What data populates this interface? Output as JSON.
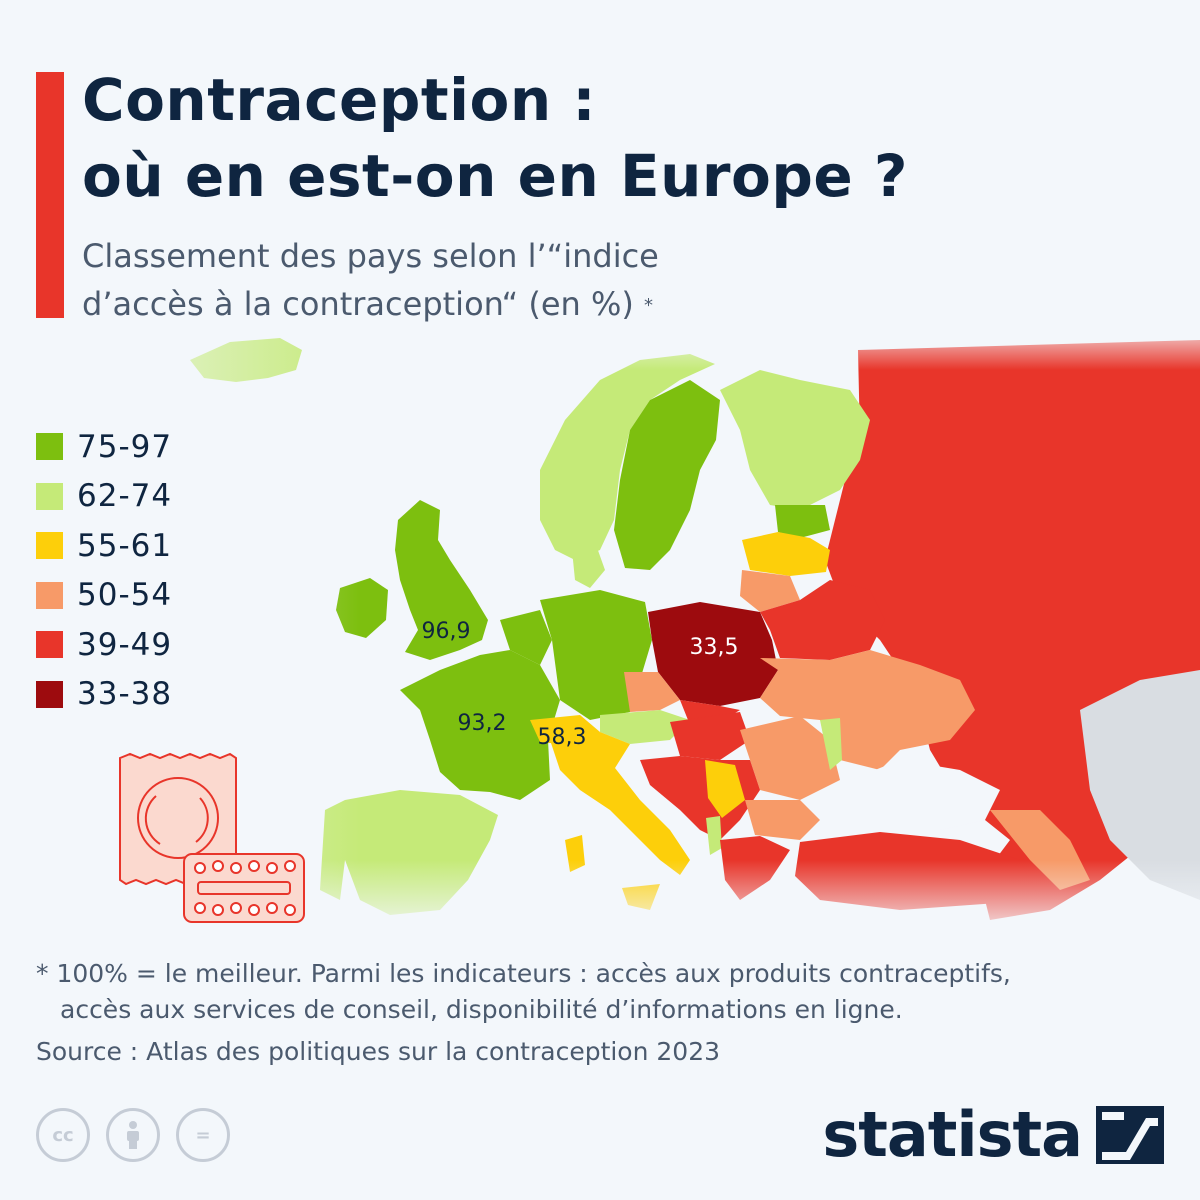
{
  "header": {
    "title_line1": "Contraception :",
    "title_line2": "où en est-on en Europe ?",
    "subtitle_line1": "Classement des pays selon l’“indice",
    "subtitle_line2": "d’accès à la contraception“ (en %)",
    "subtitle_mark": "*"
  },
  "legend": [
    {
      "label": "75-97",
      "color": "#7dbf0f"
    },
    {
      "label": "62-74",
      "color": "#c5ea78"
    },
    {
      "label": "55-61",
      "color": "#fdcf0a"
    },
    {
      "label": "50-54",
      "color": "#f79a68"
    },
    {
      "label": "39-49",
      "color": "#e8352a"
    },
    {
      "label": "33-38",
      "color": "#9d0b0e"
    }
  ],
  "map_labels": [
    {
      "country": "Royaume-Uni",
      "value": "96,9",
      "text_color": "#0f2540"
    },
    {
      "country": "France",
      "value": "93,2",
      "text_color": "#0f2540"
    },
    {
      "country": "Suisse",
      "value": "58,3",
      "text_color": "#0f2540"
    },
    {
      "country": "Pologne",
      "value": "33,5",
      "text_color": "#ffffff"
    }
  ],
  "icons": {
    "condom": "condom-icon",
    "pills": "pill-pack-icon",
    "license": [
      "creative-commons-icon",
      "attribution-icon",
      "no-derivatives-icon"
    ],
    "brand": "statista-logo-icon"
  },
  "footer": {
    "footnote_line1": "* 100% = le meilleur. Parmi les indicateurs : accès aux produits contraceptifs,",
    "footnote_line2": "accès aux services de conseil, disponibilité d’informations en ligne.",
    "source": "Source : Atlas des politiques sur la contraception 2023",
    "cc_text": "cc",
    "nd_text": "=",
    "brand": "statista"
  },
  "colors": {
    "title": "#0f2540",
    "accent": "#e8352a",
    "text_muted": "#4b5a6e",
    "background": "#f3f7fb",
    "no_data": "#d9dde2"
  }
}
